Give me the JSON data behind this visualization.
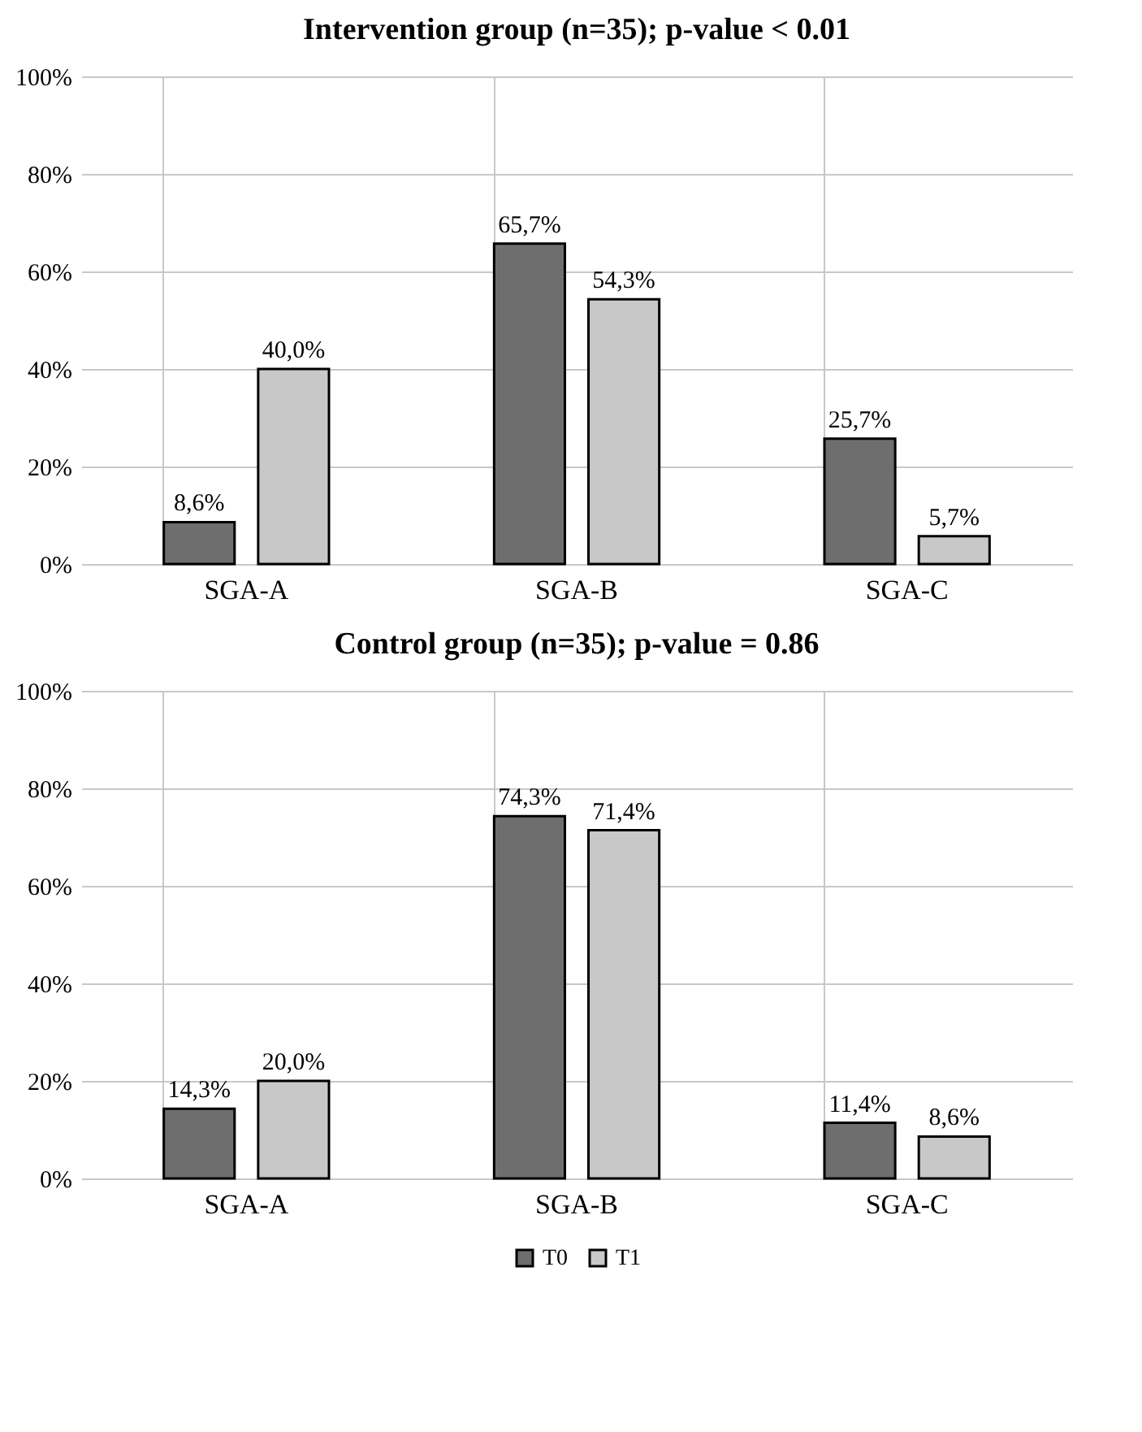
{
  "chart_data": [
    {
      "type": "bar",
      "title": "Intervention group (n=35); p-value < 0.01",
      "categories": [
        "SGA-A",
        "SGA-B",
        "SGA-C"
      ],
      "ylim": [
        0,
        100
      ],
      "yticks": [
        {
          "value": 0,
          "label": "0%"
        },
        {
          "value": 20,
          "label": "20%"
        },
        {
          "value": 40,
          "label": "40%"
        },
        {
          "value": 60,
          "label": "60%"
        },
        {
          "value": 80,
          "label": "80%"
        },
        {
          "value": 100,
          "label": "100%"
        }
      ],
      "grid": true,
      "series": [
        {
          "color": "#6e6e6e",
          "values": [
            8.6,
            65.7,
            25.7
          ],
          "value_labels": [
            "8,6%",
            "65,7%",
            "25,7%"
          ]
        },
        {
          "color": "#c8c8c8",
          "values": [
            40.0,
            54.3,
            5.7
          ],
          "value_labels": [
            "40,0%",
            "54,3%",
            "5,7%"
          ]
        }
      ]
    },
    {
      "type": "bar",
      "title": "Control group (n=35); p-value = 0.86",
      "categories": [
        "SGA-A",
        "SGA-B",
        "SGA-C"
      ],
      "ylim": [
        0,
        100
      ],
      "yticks": [
        {
          "value": 0,
          "label": "0%"
        },
        {
          "value": 20,
          "label": "20%"
        },
        {
          "value": 40,
          "label": "40%"
        },
        {
          "value": 60,
          "label": "60%"
        },
        {
          "value": 80,
          "label": "80%"
        },
        {
          "value": 100,
          "label": "100%"
        }
      ],
      "grid": true,
      "legend": "bottom",
      "series": [
        {
          "name": "T0",
          "color": "#6e6e6e",
          "values": [
            14.3,
            74.3,
            11.4
          ],
          "value_labels": [
            "14,3%",
            "74,3%",
            "11,4%"
          ]
        },
        {
          "name": "T1",
          "color": "#c8c8c8",
          "values": [
            20.0,
            71.4,
            8.6
          ],
          "value_labels": [
            "20,0%",
            "71,4%",
            "8,6%"
          ]
        }
      ]
    }
  ]
}
